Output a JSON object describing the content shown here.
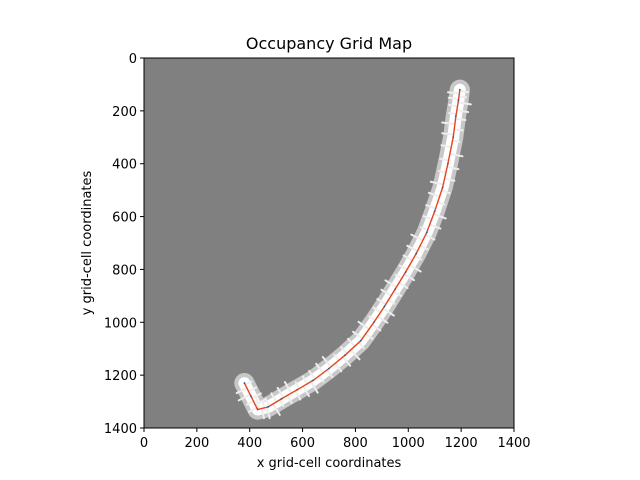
{
  "chart_data": {
    "type": "heatmap",
    "title": "Occupancy Grid Map",
    "xlabel": "x grid-cell coordinates",
    "ylabel": "y grid-cell coordinates",
    "xlim": [
      0,
      1400
    ],
    "ylim": [
      1400,
      0
    ],
    "y_axis_inverted": true,
    "x_ticks": [
      0,
      200,
      400,
      600,
      800,
      1000,
      1200,
      1400
    ],
    "y_ticks": [
      0,
      200,
      400,
      600,
      800,
      1000,
      1200,
      1400
    ],
    "grid": false,
    "colors": {
      "unknown": "#808080",
      "free": "#ffffff",
      "trajectory": "#e8441c",
      "trajectory_dots": "#1a5fb4"
    },
    "trajectory": {
      "x": [
        380,
        405,
        430,
        470,
        520,
        580,
        640,
        700,
        760,
        820,
        870,
        910,
        950,
        990,
        1030,
        1070,
        1100,
        1130,
        1150,
        1170,
        1180,
        1190,
        1195
      ],
      "y": [
        1230,
        1280,
        1330,
        1320,
        1290,
        1255,
        1220,
        1175,
        1125,
        1070,
        1000,
        940,
        875,
        810,
        740,
        660,
        580,
        490,
        400,
        300,
        220,
        160,
        120
      ]
    },
    "free_corridor_width": 45
  }
}
